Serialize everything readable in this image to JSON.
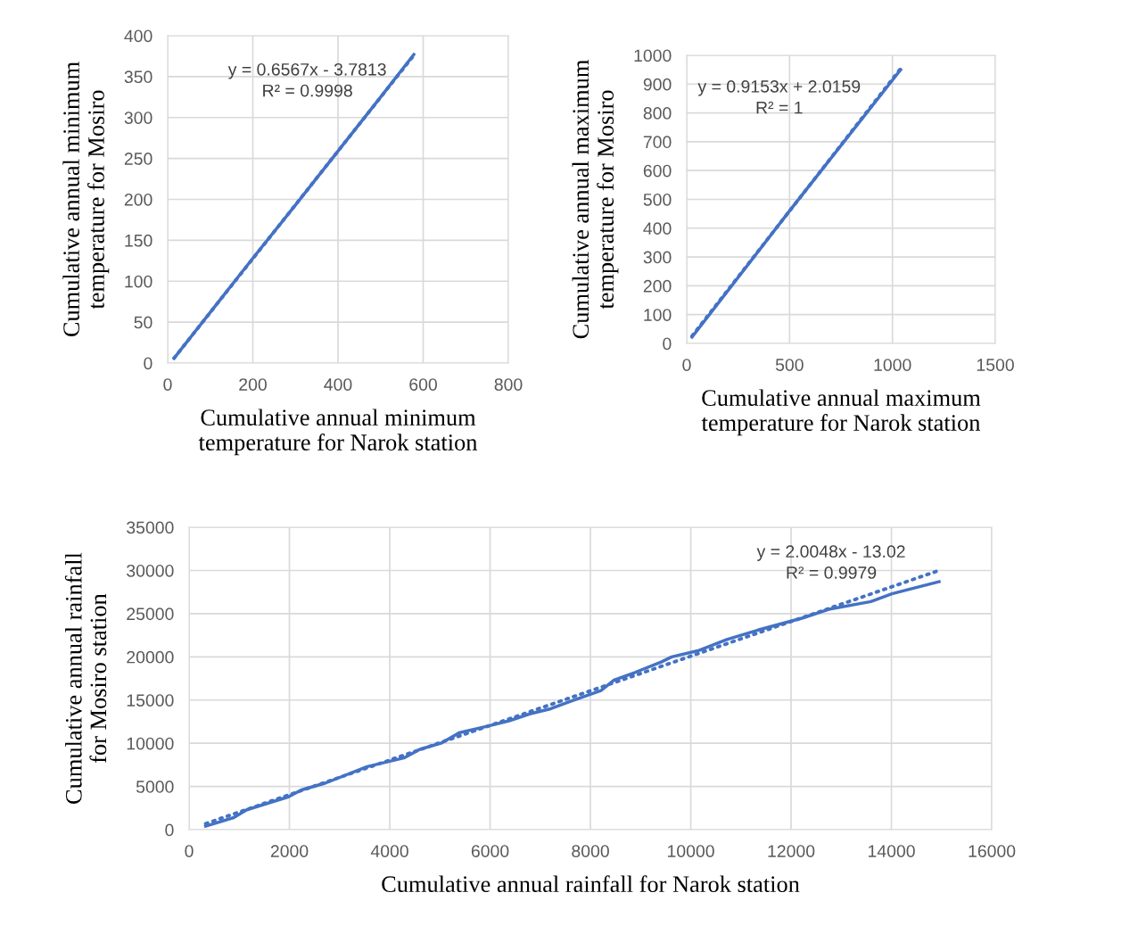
{
  "chart_data": [
    {
      "type": "line",
      "xlabel": "Cumulative annual minimum temperature for Narok station",
      "ylabel": "Cumulative annual minimum temperature for Mosiro",
      "xlim": [
        0,
        800
      ],
      "xticks": [
        0,
        200,
        400,
        600,
        800
      ],
      "ylim": [
        0,
        400
      ],
      "yticks": [
        0,
        50,
        100,
        150,
        200,
        250,
        300,
        350,
        400
      ],
      "grid": true,
      "marker": "none",
      "series": [
        {
          "color": "#4472c4",
          "line_style": "solid",
          "x": [
            15,
            100,
            200,
            300,
            400,
            500,
            578
          ],
          "values": [
            6,
            62,
            128,
            193,
            259,
            325,
            377
          ]
        },
        {
          "color": "#4472c4",
          "line_style": "dotted",
          "x": [
            15,
            578
          ],
          "values": [
            6,
            376
          ]
        }
      ],
      "annotations": [
        "y = 0.6567x - 3.7813\nR² = 0.9998"
      ]
    },
    {
      "type": "line",
      "xlabel": "Cumulative annual maximum temperature for Narok station",
      "ylabel": "Cumulative annual maximum temperature for Mosiro",
      "xlim": [
        0,
        1500
      ],
      "xticks": [
        0,
        500,
        1000,
        1500
      ],
      "ylim": [
        0,
        1000
      ],
      "yticks": [
        0,
        100,
        200,
        300,
        400,
        500,
        600,
        700,
        800,
        900,
        1000
      ],
      "grid": true,
      "marker": "none",
      "series": [
        {
          "color": "#4472c4",
          "line_style": "solid",
          "x": [
            26,
            500,
            1040
          ],
          "values": [
            22,
            460,
            950
          ]
        },
        {
          "color": "#4472c4",
          "line_style": "dotted",
          "x": [
            26,
            1040
          ],
          "values": [
            26,
            954
          ]
        }
      ],
      "annotations": [
        "y = 0.9153x + 2.0159\nR² = 1"
      ]
    },
    {
      "type": "line",
      "xlabel": "Cumulative annual rainfall for Narok station",
      "ylabel": "Cumulative annual rainfall for Mosiro station",
      "xlim": [
        0,
        16000
      ],
      "xticks": [
        0,
        2000,
        4000,
        6000,
        8000,
        10000,
        12000,
        14000,
        16000
      ],
      "ylim": [
        0,
        35000
      ],
      "yticks": [
        0,
        5000,
        10000,
        15000,
        20000,
        25000,
        30000,
        35000
      ],
      "grid": true,
      "marker": "none",
      "series": [
        {
          "color": "#4472c4",
          "line_style": "solid",
          "x": [
            330,
            890,
            1150,
            1980,
            2240,
            2720,
            3550,
            4280,
            4600,
            5020,
            5380,
            5960,
            6380,
            6790,
            7210,
            7630,
            8210,
            8470,
            8890,
            9410,
            9620,
            10140,
            10720,
            11340,
            12230,
            12750,
            13590,
            14010,
            14950
          ],
          "values": [
            400,
            1400,
            2300,
            3800,
            4600,
            5400,
            7300,
            8300,
            9300,
            10000,
            11200,
            12000,
            12600,
            13400,
            14000,
            14900,
            16100,
            17300,
            18200,
            19400,
            20000,
            20700,
            22000,
            23100,
            24500,
            25500,
            26400,
            27300,
            28700
          ]
        },
        {
          "color": "#4472c4",
          "line_style": "dotted",
          "x": [
            330,
            14950
          ],
          "values": [
            700,
            30000
          ]
        }
      ],
      "annotations": [
        "y = 2.0048x - 13.02\nR² = 0.9979"
      ]
    }
  ]
}
